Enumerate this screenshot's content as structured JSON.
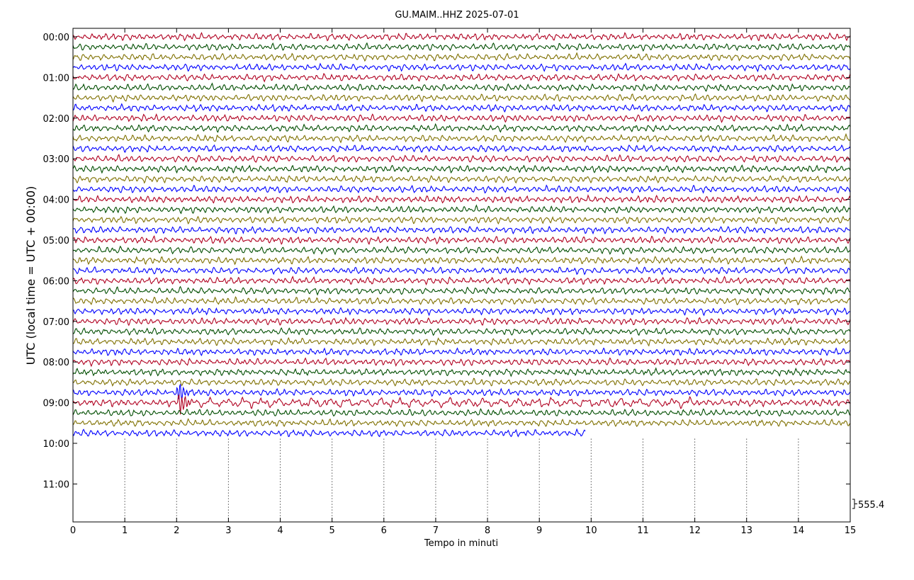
{
  "chart_data": {
    "type": "line",
    "title": "GU.MAIM..HHZ 2025-07-01",
    "xlabel": "Tempo in minuti",
    "ylabel": "UTC (local time = UTC + 00:00)",
    "xlim": [
      0,
      15
    ],
    "x_ticks": [
      "0",
      "1",
      "2",
      "3",
      "4",
      "5",
      "6",
      "7",
      "8",
      "9",
      "10",
      "11",
      "12",
      "13",
      "14",
      "15"
    ],
    "y_ticks": [
      "00:00",
      "01:00",
      "02:00",
      "03:00",
      "04:00",
      "05:00",
      "06:00",
      "07:00",
      "08:00",
      "09:00",
      "10:00",
      "11:00"
    ],
    "scale_label": "555.4",
    "grid": "vertical dotted at each minute from 10:00 downward",
    "trace_colors": [
      "#b00020",
      "#004d00",
      "#7f7000",
      "#0000ff"
    ],
    "traces_per_hour": 4,
    "trace_minutes": 15,
    "last_trace_end_minute": 9.88,
    "events": [
      {
        "trace_start": "08:45",
        "minute": 2.03,
        "amplitude": "large"
      },
      {
        "trace_start": "09:00",
        "minute": 2.05,
        "amplitude": "large"
      }
    ]
  }
}
